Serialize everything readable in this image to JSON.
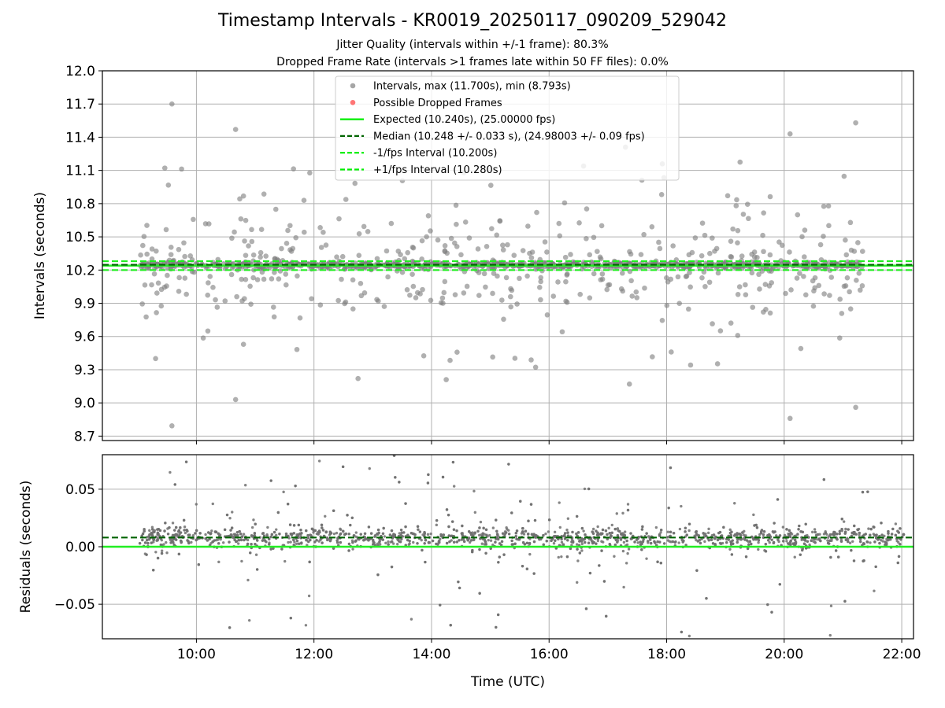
{
  "chart_data": [
    {
      "type": "scatter",
      "title": "Timestamp Intervals - KR0019_20250117_090209_529042",
      "subtitle_lines": [
        "Jitter Quality (intervals within +/-1 frame): 80.3%",
        "Dropped Frame Rate (intervals >1 frames late within 50 FF files): 0.0%"
      ],
      "ylabel": "Intervals (seconds)",
      "xlabel": "",
      "ylim": [
        8.66,
        12.0
      ],
      "yticks": [
        "8.7",
        "9.0",
        "9.3",
        "9.6",
        "9.9",
        "10.2",
        "10.5",
        "10.8",
        "11.1",
        "11.4",
        "11.7",
        "12.0"
      ],
      "x_range_hours": [
        8.4,
        22.2
      ],
      "time_range_points": [
        "09:02",
        "21:20"
      ],
      "grid": true,
      "legend_position": "top-center",
      "legend": [
        {
          "label": "Intervals, max (11.700s), min (8.793s)",
          "marker": "dot",
          "color": "#808080"
        },
        {
          "label": "Possible Dropped Frames",
          "marker": "dot",
          "color": "#ff3b3b"
        },
        {
          "label": "Expected (10.240s), (25.00000 fps)",
          "marker": "line",
          "color": "#00ee00"
        },
        {
          "label": "Median (10.248 +/- 0.033 s), (24.98003 +/- 0.09 fps)",
          "marker": "dashed",
          "color": "#006400"
        },
        {
          "label": "-1/fps Interval (10.200s)",
          "marker": "dashed",
          "color": "#00ee00"
        },
        {
          "label": "+1/fps Interval (10.280s)",
          "marker": "dashed",
          "color": "#00ee00"
        }
      ],
      "series": [
        {
          "name": "Intervals",
          "summary": {
            "max": 11.7,
            "min": 8.793,
            "median": 10.248,
            "spread": 0.033,
            "center": 10.245
          }
        },
        {
          "name": "Expected",
          "y": 10.24
        },
        {
          "name": "Median",
          "y": 10.248
        },
        {
          "name": "-1/fps Interval",
          "y": 10.2
        },
        {
          "name": "+1/fps Interval",
          "y": 10.28
        }
      ],
      "notable_points": [
        {
          "x": "09:35",
          "y": 11.7
        },
        {
          "x": "09:35",
          "y": 8.793
        },
        {
          "x": "10:40",
          "y": 11.47
        },
        {
          "x": "10:40",
          "y": 9.03
        },
        {
          "x": "17:18",
          "y": 11.31
        },
        {
          "x": "20:06",
          "y": 8.86
        },
        {
          "x": "20:06",
          "y": 11.43
        },
        {
          "x": "21:13",
          "y": 11.53
        },
        {
          "x": "21:13",
          "y": 8.96
        },
        {
          "x": "12:45",
          "y": 9.22
        },
        {
          "x": "14:15",
          "y": 9.21
        },
        {
          "x": "17:22",
          "y": 9.17
        }
      ]
    },
    {
      "type": "scatter",
      "xlabel": "Time (UTC)",
      "ylabel": "Residuals (seconds)",
      "ylim": [
        -0.08,
        0.08
      ],
      "yticks": [
        "−0.05",
        "0.00",
        "0.05"
      ],
      "xticks": [
        "10:00",
        "12:00",
        "14:00",
        "16:00",
        "18:00",
        "20:00",
        "22:00"
      ],
      "x_range_hours": [
        8.4,
        22.2
      ],
      "grid": true,
      "series": [
        {
          "name": "Residuals",
          "summary": {
            "center": 0.008,
            "spread": 0.006
          }
        },
        {
          "name": "Median",
          "y": 0.008
        },
        {
          "name": "Expected",
          "y": 0.0
        }
      ]
    }
  ]
}
